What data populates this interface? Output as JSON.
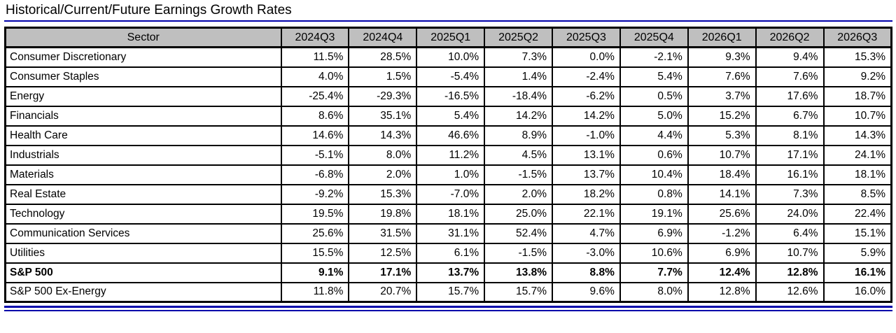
{
  "page": {
    "title": "Historical/Current/Future Earnings Growth Rates"
  },
  "colors": {
    "header_bg": "#bfbfbf",
    "table_border": "#000000",
    "rule_blue": "#0000aa"
  },
  "chart_data": {
    "type": "table",
    "title": "Historical/Current/Future Earnings Growth Rates",
    "columns": [
      "Sector",
      "2024Q3",
      "2024Q4",
      "2025Q1",
      "2025Q2",
      "2025Q3",
      "2025Q4",
      "2026Q1",
      "2026Q2",
      "2026Q3"
    ],
    "rows": [
      {
        "sector": "Consumer Discretionary",
        "values": [
          "11.5%",
          "28.5%",
          "10.0%",
          "7.3%",
          "0.0%",
          "-2.1%",
          "9.3%",
          "9.4%",
          "15.3%"
        ],
        "bold": false
      },
      {
        "sector": "Consumer Staples",
        "values": [
          "4.0%",
          "1.5%",
          "-5.4%",
          "1.4%",
          "-2.4%",
          "5.4%",
          "7.6%",
          "7.6%",
          "9.2%"
        ],
        "bold": false
      },
      {
        "sector": "Energy",
        "values": [
          "-25.4%",
          "-29.3%",
          "-16.5%",
          "-18.4%",
          "-6.2%",
          "0.5%",
          "3.7%",
          "17.6%",
          "18.7%"
        ],
        "bold": false
      },
      {
        "sector": "Financials",
        "values": [
          "8.6%",
          "35.1%",
          "5.4%",
          "14.2%",
          "14.2%",
          "5.0%",
          "15.2%",
          "6.7%",
          "10.7%"
        ],
        "bold": false
      },
      {
        "sector": "Health Care",
        "values": [
          "14.6%",
          "14.3%",
          "46.6%",
          "8.9%",
          "-1.0%",
          "4.4%",
          "5.3%",
          "8.1%",
          "14.3%"
        ],
        "bold": false
      },
      {
        "sector": "Industrials",
        "values": [
          "-5.1%",
          "8.0%",
          "11.2%",
          "4.5%",
          "13.1%",
          "0.6%",
          "10.7%",
          "17.1%",
          "24.1%"
        ],
        "bold": false
      },
      {
        "sector": "Materials",
        "values": [
          "-6.8%",
          "2.0%",
          "1.0%",
          "-1.5%",
          "13.7%",
          "10.4%",
          "18.4%",
          "16.1%",
          "18.1%"
        ],
        "bold": false
      },
      {
        "sector": "Real Estate",
        "values": [
          "-9.2%",
          "15.3%",
          "-7.0%",
          "2.0%",
          "18.2%",
          "0.8%",
          "14.1%",
          "7.3%",
          "8.5%"
        ],
        "bold": false
      },
      {
        "sector": "Technology",
        "values": [
          "19.5%",
          "19.8%",
          "18.1%",
          "25.0%",
          "22.1%",
          "19.1%",
          "25.6%",
          "24.0%",
          "22.4%"
        ],
        "bold": false
      },
      {
        "sector": "Communication Services",
        "values": [
          "25.6%",
          "31.5%",
          "31.1%",
          "52.4%",
          "4.7%",
          "6.9%",
          "-1.2%",
          "6.4%",
          "15.1%"
        ],
        "bold": false
      },
      {
        "sector": "Utilities",
        "values": [
          "15.5%",
          "12.5%",
          "6.1%",
          "-1.5%",
          "-3.0%",
          "10.6%",
          "6.9%",
          "10.7%",
          "5.9%"
        ],
        "bold": false
      },
      {
        "sector": "S&P 500",
        "values": [
          "9.1%",
          "17.1%",
          "13.7%",
          "13.8%",
          "8.8%",
          "7.7%",
          "12.4%",
          "12.8%",
          "16.1%"
        ],
        "bold": true
      },
      {
        "sector": "S&P 500 Ex-Energy",
        "values": [
          "11.8%",
          "20.7%",
          "15.7%",
          "15.7%",
          "9.6%",
          "8.0%",
          "12.8%",
          "12.6%",
          "16.0%"
        ],
        "bold": false
      }
    ]
  }
}
